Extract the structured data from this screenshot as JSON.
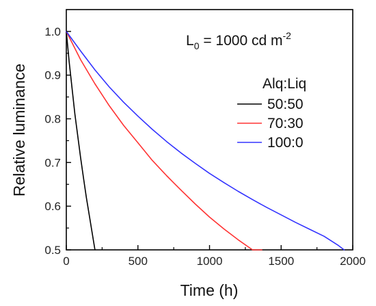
{
  "chart_data": {
    "type": "line",
    "title": "",
    "xlabel": "Time (h)",
    "ylabel": "Relative luminance",
    "xlim": [
      0,
      2000
    ],
    "ylim": [
      0.5,
      1.05
    ],
    "xticks": [
      0,
      500,
      1000,
      1500,
      2000
    ],
    "yticks": [
      0.5,
      0.6,
      0.7,
      0.8,
      0.9,
      1.0
    ],
    "xtick_labels": [
      "0",
      "500",
      "1000",
      "1500",
      "2000"
    ],
    "ytick_labels": [
      "0.5",
      "0.6",
      "0.7",
      "0.8",
      "0.9",
      "1.0"
    ],
    "grid": false,
    "annotation": {
      "prefix": "L",
      "subscript": "0",
      "middle": " = 1000 cd m",
      "superscript": "-2"
    },
    "legend": {
      "title": "Alq:Liq",
      "placement": "right"
    },
    "series": [
      {
        "name": "50:50",
        "color": "#000000",
        "x": [
          0,
          20,
          40,
          60,
          80,
          100,
          120,
          140,
          160,
          180,
          200
        ],
        "y": [
          1.0,
          0.93,
          0.87,
          0.81,
          0.76,
          0.71,
          0.665,
          0.62,
          0.58,
          0.54,
          0.5
        ]
      },
      {
        "name": "70:30",
        "color": "#ff3333",
        "x": [
          0,
          100,
          200,
          300,
          400,
          500,
          600,
          700,
          800,
          900,
          1000,
          1100,
          1200,
          1300,
          1365
        ],
        "y": [
          1.0,
          0.935,
          0.88,
          0.83,
          0.785,
          0.745,
          0.705,
          0.67,
          0.637,
          0.605,
          0.575,
          0.548,
          0.523,
          0.5,
          0.5
        ]
      },
      {
        "name": "100:0",
        "color": "#3333ff",
        "x": [
          0,
          100,
          200,
          300,
          400,
          500,
          600,
          700,
          800,
          900,
          1000,
          1100,
          1200,
          1300,
          1400,
          1500,
          1600,
          1700,
          1800,
          1900,
          1940
        ],
        "y": [
          1.0,
          0.955,
          0.912,
          0.873,
          0.838,
          0.806,
          0.776,
          0.748,
          0.722,
          0.698,
          0.675,
          0.654,
          0.634,
          0.615,
          0.597,
          0.58,
          0.563,
          0.547,
          0.531,
          0.51,
          0.5
        ]
      }
    ]
  }
}
